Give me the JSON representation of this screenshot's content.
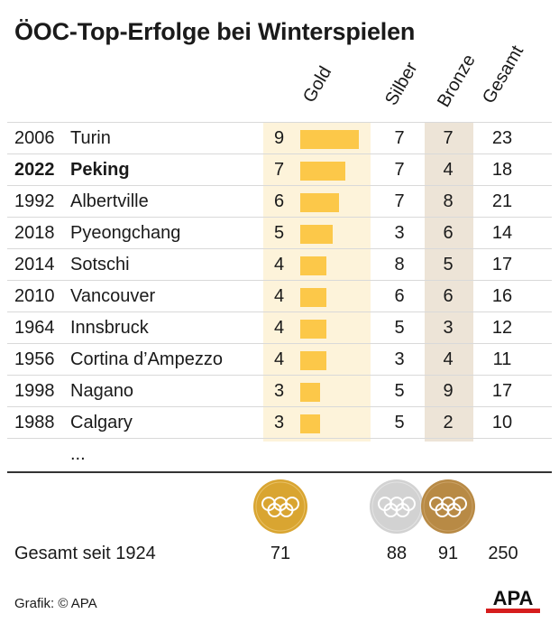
{
  "title": "ÖOC-Top-Erfolge bei Winterspielen",
  "columns": {
    "gold": "Gold",
    "silber": "Silber",
    "bronze": "Bronze",
    "gesamt": "Gesamt"
  },
  "rows": [
    {
      "year": "2006",
      "city": "Turin",
      "gold": 9,
      "silber": 7,
      "bronze": 7,
      "gesamt": 23,
      "highlight": false
    },
    {
      "year": "2022",
      "city": "Peking",
      "gold": 7,
      "silber": 7,
      "bronze": 4,
      "gesamt": 18,
      "highlight": true
    },
    {
      "year": "1992",
      "city": "Albertville",
      "gold": 6,
      "silber": 7,
      "bronze": 8,
      "gesamt": 21,
      "highlight": false
    },
    {
      "year": "2018",
      "city": "Pyeongchang",
      "gold": 5,
      "silber": 3,
      "bronze": 6,
      "gesamt": 14,
      "highlight": false
    },
    {
      "year": "2014",
      "city": "Sotschi",
      "gold": 4,
      "silber": 8,
      "bronze": 5,
      "gesamt": 17,
      "highlight": false
    },
    {
      "year": "2010",
      "city": "Vancouver",
      "gold": 4,
      "silber": 6,
      "bronze": 6,
      "gesamt": 16,
      "highlight": false
    },
    {
      "year": "1964",
      "city": "Innsbruck",
      "gold": 4,
      "silber": 5,
      "bronze": 3,
      "gesamt": 12,
      "highlight": false
    },
    {
      "year": "1956",
      "city": "Cortina d’Ampezzo",
      "gold": 4,
      "silber": 3,
      "bronze": 4,
      "gesamt": 11,
      "highlight": false
    },
    {
      "year": "1998",
      "city": "Nagano",
      "gold": 3,
      "silber": 5,
      "bronze": 9,
      "gesamt": 17,
      "highlight": false
    },
    {
      "year": "1988",
      "city": "Calgary",
      "gold": 3,
      "silber": 5,
      "bronze": 2,
      "gesamt": 10,
      "highlight": false
    }
  ],
  "ellipsis": "...",
  "totals": {
    "label": "Gesamt seit 1924",
    "gold": "71",
    "silber": "88",
    "bronze": "91",
    "gesamt": "250"
  },
  "credit": "Grafik: © APA",
  "logo_text": "APA",
  "colors": {
    "gold_bar": "#fcc849",
    "gold_band": "#fdf3da",
    "bronze_band": "#ede4d7",
    "medal_gold": "#d9a531",
    "medal_silver": "#d2d2d2",
    "medal_bronze": "#b88a45",
    "logo_red": "#d61d1d"
  },
  "chart_data": {
    "type": "table",
    "title": "ÖOC-Top-Erfolge bei Winterspielen",
    "columns": [
      "Gold",
      "Silber",
      "Bronze",
      "Gesamt"
    ],
    "categories": [
      "2006 Turin",
      "2022 Peking",
      "1992 Albertville",
      "2018 Pyeongchang",
      "2014 Sotschi",
      "2010 Vancouver",
      "1964 Innsbruck",
      "1956 Cortina d’Ampezzo",
      "1998 Nagano",
      "1988 Calgary"
    ],
    "series": [
      {
        "name": "Gold",
        "values": [
          9,
          7,
          6,
          5,
          4,
          4,
          4,
          4,
          3,
          3
        ]
      },
      {
        "name": "Silber",
        "values": [
          7,
          7,
          7,
          3,
          8,
          6,
          5,
          3,
          5,
          5
        ]
      },
      {
        "name": "Bronze",
        "values": [
          7,
          4,
          8,
          6,
          5,
          6,
          3,
          4,
          9,
          2
        ]
      },
      {
        "name": "Gesamt",
        "values": [
          23,
          18,
          21,
          14,
          17,
          16,
          12,
          11,
          17,
          10
        ]
      }
    ],
    "totals": {
      "Gold": 71,
      "Silber": 88,
      "Bronze": 91,
      "Gesamt": 250
    }
  }
}
